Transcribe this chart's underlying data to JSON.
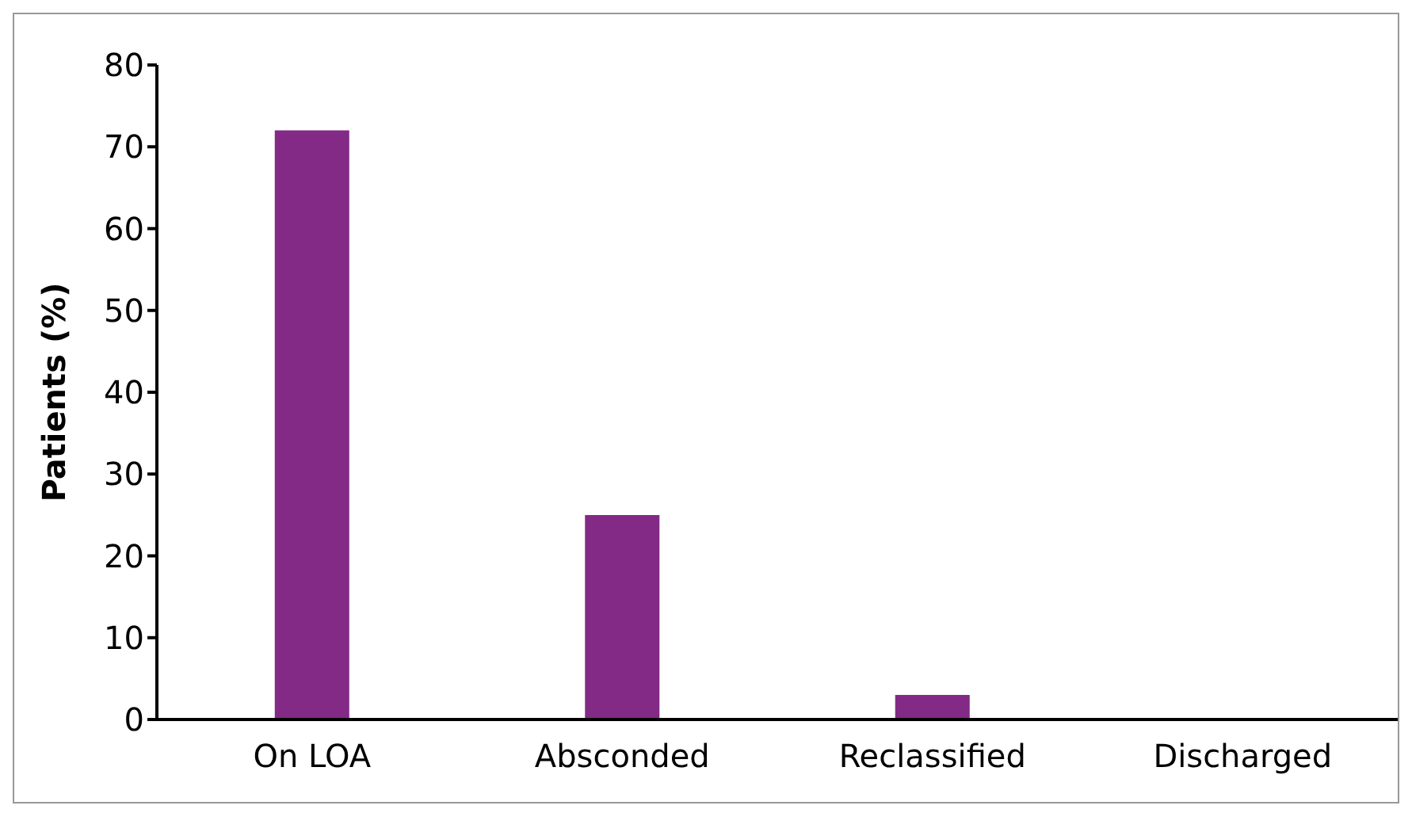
{
  "chart_data": {
    "type": "bar",
    "ylabel": "Patients (%)",
    "categories": [
      "On LOA",
      "Absconded",
      "Reclassified",
      "Discharged"
    ],
    "values": [
      72,
      25,
      3,
      0
    ],
    "color": "#822a85",
    "ylim": [
      0,
      80
    ],
    "yticks": [
      0,
      10,
      20,
      30,
      40,
      50,
      60,
      70,
      80
    ],
    "grid": false
  }
}
